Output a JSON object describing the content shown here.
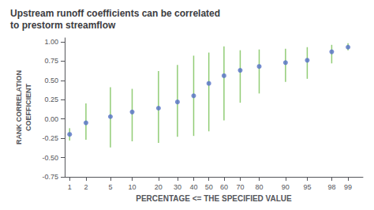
{
  "chart_data": {
    "type": "scatter",
    "title": "Upstream runoff coefficients can be correlated\nto prestorm streamflow",
    "xlabel": "PERCENTAGE <= THE SPECIFIED VALUE",
    "ylabel": "RANK CORRELATION\nCOEFFICIENT",
    "x": [
      1,
      2,
      5,
      10,
      20,
      30,
      40,
      50,
      60,
      70,
      80,
      90,
      95,
      98,
      99
    ],
    "values": [
      -0.2,
      -0.05,
      0.03,
      0.09,
      0.14,
      0.22,
      0.3,
      0.46,
      0.56,
      0.63,
      0.68,
      0.73,
      0.76,
      0.87,
      0.93
    ],
    "error_bars": {
      "lower": [
        0.08,
        0.22,
        0.4,
        0.38,
        0.45,
        0.45,
        0.52,
        0.62,
        0.58,
        0.42,
        0.35,
        0.25,
        0.24,
        0.15,
        0.04
      ],
      "upper": [
        0.08,
        0.25,
        0.38,
        0.3,
        0.48,
        0.48,
        0.52,
        0.4,
        0.38,
        0.26,
        0.22,
        0.18,
        0.17,
        0.09,
        0.05
      ]
    },
    "xlim": [
      0.8,
      99.5
    ],
    "xticks": [
      1,
      2,
      5,
      10,
      20,
      30,
      40,
      50,
      60,
      70,
      80,
      90,
      95,
      98,
      99
    ],
    "ylim": [
      -0.75,
      1.05
    ],
    "yticks": [
      -0.75,
      {
        "value": -0.5,
        "label": "-0.50"
      },
      -0.25,
      {
        "value": 0.0,
        "label": "0.00"
      },
      0.25,
      {
        "value": 0.5,
        "label": "0.50"
      },
      0.75,
      {
        "value": 1.0,
        "label": "1.00"
      }
    ],
    "grid": false
  }
}
